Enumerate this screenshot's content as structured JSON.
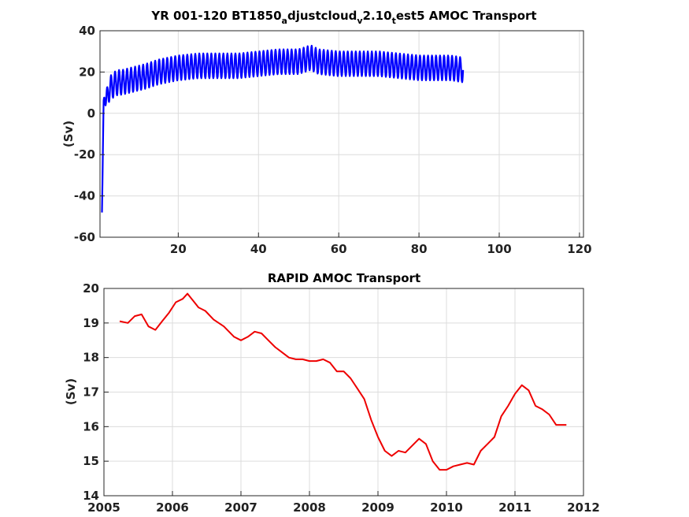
{
  "chart_data": [
    {
      "type": "line",
      "title_parts": [
        "YR 001-120 BT1850",
        "a",
        "djustcloud",
        "v",
        "2.10",
        "t",
        "est5 AMOC Transport"
      ],
      "xlabel": "",
      "ylabel": "(Sv)",
      "xlim": [
        0.5,
        121
      ],
      "ylim": [
        -60,
        40
      ],
      "xticks": [
        20,
        40,
        60,
        80,
        100,
        120
      ],
      "xtick_labels": [
        "20",
        "40",
        "60",
        "80",
        "100",
        "120"
      ],
      "yticks": [
        -60,
        -40,
        -20,
        0,
        20,
        40
      ],
      "ytick_labels": [
        "-60",
        "-40",
        "-20",
        "0",
        "20",
        "40"
      ],
      "grid": true,
      "line_color": "#0000ff",
      "series": [
        {
          "x": [
            1,
            1.2,
            1.4,
            1.6,
            1.8,
            2,
            2.5,
            3,
            4,
            5,
            6,
            8,
            10,
            12,
            15,
            20,
            25,
            30,
            35,
            40,
            45,
            50,
            53,
            55,
            60,
            65,
            70,
            75,
            80,
            85,
            88,
            91
          ],
          "y": [
            -48,
            -20,
            5,
            10,
            8,
            5,
            10,
            12,
            14,
            15,
            15,
            16,
            17,
            18,
            20,
            22,
            23,
            23,
            23,
            24,
            25,
            25,
            27,
            25,
            24,
            24,
            24,
            23,
            22,
            22,
            22,
            21
          ],
          "seasonal_amplitude": [
            0,
            0,
            2,
            4,
            4,
            5,
            5,
            6,
            6,
            6,
            6,
            6,
            6,
            6,
            6,
            6,
            6,
            6,
            6,
            6,
            6,
            6,
            6,
            6,
            6,
            6,
            6,
            6,
            6,
            6,
            6,
            6
          ]
        }
      ]
    },
    {
      "type": "line",
      "title": "RAPID AMOC Transport",
      "xlabel": "",
      "ylabel": "(Sv)",
      "xlim": [
        2005,
        2012
      ],
      "ylim": [
        14,
        20
      ],
      "xticks": [
        2005,
        2006,
        2007,
        2008,
        2009,
        2010,
        2011,
        2012
      ],
      "xtick_labels": [
        "2005",
        "2006",
        "2007",
        "2008",
        "2009",
        "2010",
        "2011",
        "2012"
      ],
      "yticks": [
        14,
        15,
        16,
        17,
        18,
        19,
        20
      ],
      "ytick_labels": [
        "14",
        "15",
        "16",
        "17",
        "18",
        "19",
        "20"
      ],
      "grid": true,
      "line_color": "#ee0000",
      "series": [
        {
          "x": [
            2005.23,
            2005.35,
            2005.45,
            2005.55,
            2005.65,
            2005.75,
            2005.85,
            2005.95,
            2006.05,
            2006.15,
            2006.22,
            2006.28,
            2006.38,
            2006.48,
            2006.6,
            2006.75,
            2006.9,
            2007.0,
            2007.1,
            2007.2,
            2007.3,
            2007.4,
            2007.5,
            2007.6,
            2007.7,
            2007.8,
            2007.9,
            2008.0,
            2008.1,
            2008.2,
            2008.3,
            2008.4,
            2008.5,
            2008.6,
            2008.7,
            2008.8,
            2008.9,
            2009.0,
            2009.1,
            2009.2,
            2009.3,
            2009.4,
            2009.5,
            2009.6,
            2009.7,
            2009.8,
            2009.9,
            2010.0,
            2010.1,
            2010.2,
            2010.3,
            2010.4,
            2010.5,
            2010.6,
            2010.7,
            2010.8,
            2010.9,
            2011.0,
            2011.1,
            2011.2,
            2011.3,
            2011.4,
            2011.5,
            2011.6,
            2011.7,
            2011.75
          ],
          "y": [
            19.05,
            19.0,
            19.2,
            19.25,
            18.9,
            18.8,
            19.05,
            19.3,
            19.6,
            19.7,
            19.85,
            19.7,
            19.45,
            19.35,
            19.1,
            18.9,
            18.6,
            18.5,
            18.6,
            18.75,
            18.7,
            18.5,
            18.3,
            18.15,
            18.0,
            17.95,
            17.95,
            17.9,
            17.9,
            17.95,
            17.85,
            17.6,
            17.6,
            17.4,
            17.1,
            16.8,
            16.2,
            15.7,
            15.3,
            15.15,
            15.3,
            15.25,
            15.45,
            15.65,
            15.5,
            15.0,
            14.75,
            14.75,
            14.85,
            14.9,
            14.95,
            14.9,
            15.3,
            15.5,
            15.7,
            16.3,
            16.6,
            16.95,
            17.2,
            17.05,
            16.6,
            16.5,
            16.35,
            16.05,
            16.05,
            16.05
          ]
        }
      ]
    }
  ]
}
